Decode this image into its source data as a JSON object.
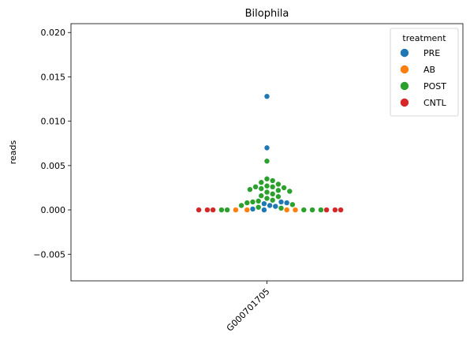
{
  "chart_data": {
    "type": "scatter",
    "subtype": "swarm",
    "title": "Bilophila",
    "xlabel": "",
    "ylabel": "reads",
    "categories": [
      "G000701705"
    ],
    "ylim": [
      -0.008,
      0.021
    ],
    "yticks": [
      -0.005,
      0.0,
      0.005,
      0.01,
      0.015,
      0.02
    ],
    "ytick_labels": [
      "−0.005",
      "0.000",
      "0.005",
      "0.010",
      "0.015",
      "0.020"
    ],
    "xtick_rotation": 45,
    "grid": false,
    "legend": {
      "title": "treatment",
      "placement": "top-right",
      "entries": [
        {
          "label": "PRE",
          "color": "#1f77b4"
        },
        {
          "label": "AB",
          "color": "#ff7f0e"
        },
        {
          "label": "POST",
          "color": "#2ca02c"
        },
        {
          "label": "CNTL",
          "color": "#d62728"
        }
      ]
    },
    "series": [
      {
        "name": "PRE",
        "color": "#1f77b4",
        "values": [
          0.0128,
          0.007,
          0.0009,
          0.0008,
          0.0007,
          0.0005,
          0.0004,
          0.0001,
          0.0
        ]
      },
      {
        "name": "AB",
        "color": "#ff7f0e",
        "values": [
          0.0,
          0.0,
          0.0,
          0.0
        ]
      },
      {
        "name": "POST",
        "color": "#2ca02c",
        "values": [
          0.0055,
          0.0035,
          0.0033,
          0.0031,
          0.0029,
          0.0027,
          0.0026,
          0.0026,
          0.0025,
          0.0024,
          0.0023,
          0.0022,
          0.0021,
          0.002,
          0.0018,
          0.0016,
          0.0015,
          0.0013,
          0.0011,
          0.001,
          0.0009,
          0.0008,
          0.0006,
          0.0005,
          0.0003,
          0.0002,
          0.0,
          0.0,
          0.0,
          0.0,
          0.0
        ]
      },
      {
        "name": "CNTL",
        "color": "#d62728",
        "values": [
          0.0,
          0.0,
          0.0,
          0.0,
          0.0,
          0.0
        ]
      }
    ]
  }
}
